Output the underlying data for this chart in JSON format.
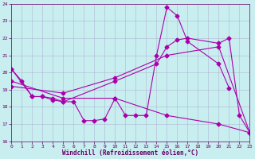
{
  "xlabel": "Windchill (Refroidissement éolien,°C)",
  "bg_color": "#c8eef0",
  "line_color": "#aa00aa",
  "grid_color": "#aaaacc",
  "xlim": [
    0,
    23
  ],
  "ylim": [
    16,
    24
  ],
  "yticks": [
    16,
    17,
    18,
    19,
    20,
    21,
    22,
    23,
    24
  ],
  "xticks": [
    0,
    1,
    2,
    3,
    4,
    5,
    6,
    7,
    8,
    9,
    10,
    11,
    12,
    13,
    14,
    15,
    16,
    17,
    18,
    19,
    20,
    21,
    22,
    23
  ],
  "line1_x": [
    0,
    1,
    2,
    3,
    4,
    5,
    6,
    7,
    8,
    9,
    10,
    11,
    12,
    13,
    14,
    15,
    16,
    17,
    20,
    21
  ],
  "line1_y": [
    20.2,
    19.5,
    18.6,
    18.6,
    18.4,
    18.3,
    18.3,
    17.2,
    17.2,
    17.3,
    18.5,
    17.5,
    17.5,
    17.5,
    21.0,
    23.8,
    23.3,
    21.8,
    20.5,
    19.1
  ],
  "line2_x": [
    0,
    2,
    3,
    4,
    5,
    10,
    14,
    15,
    16,
    17,
    20,
    21,
    22,
    23
  ],
  "line2_y": [
    20.2,
    18.6,
    18.6,
    18.5,
    18.3,
    19.5,
    20.5,
    21.5,
    21.9,
    22.0,
    21.7,
    22.0,
    17.5,
    16.5
  ],
  "line3_x": [
    0,
    5,
    10,
    15,
    20,
    23
  ],
  "line3_y": [
    19.2,
    18.8,
    19.7,
    21.0,
    21.5,
    16.5
  ],
  "line4_x": [
    0,
    5,
    10,
    15,
    20,
    23
  ],
  "line4_y": [
    19.5,
    18.5,
    18.5,
    17.5,
    17.0,
    16.5
  ]
}
